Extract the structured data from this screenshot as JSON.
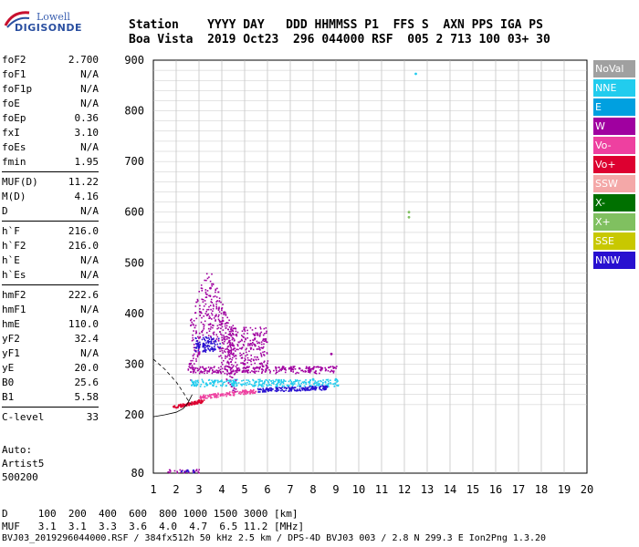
{
  "logo": {
    "top": "Lowell",
    "bottom": "DIGISONDE"
  },
  "header": {
    "line1": "Station    YYYY DAY   DDD HHMMSS P1  FFS S  AXN PPS IGA PS",
    "line2": "Boa Vista  2019 Oct23  296 044000 RSF  005 2 713 100 03+ 30"
  },
  "params": [
    {
      "label": "foF2",
      "value": "2.700"
    },
    {
      "label": "foF1",
      "value": "N/A"
    },
    {
      "label": "foF1p",
      "value": "N/A"
    },
    {
      "label": "foE",
      "value": "N/A"
    },
    {
      "label": "foEp",
      "value": "0.36"
    },
    {
      "label": "fxI",
      "value": "3.10"
    },
    {
      "label": "foEs",
      "value": "N/A"
    },
    {
      "label": "fmin",
      "value": "1.95"
    },
    {
      "label": "MUF(D)",
      "value": "11.22"
    },
    {
      "label": "M(D)",
      "value": "4.16"
    },
    {
      "label": "D",
      "value": "N/A"
    },
    {
      "label": "h`F",
      "value": "216.0"
    },
    {
      "label": "h`F2",
      "value": "216.0"
    },
    {
      "label": "h`E",
      "value": "N/A"
    },
    {
      "label": "h`Es",
      "value": "N/A"
    },
    {
      "label": "hmF2",
      "value": "222.6"
    },
    {
      "label": "hmF1",
      "value": "N/A"
    },
    {
      "label": "hmE",
      "value": "110.0"
    },
    {
      "label": "yF2",
      "value": "32.4"
    },
    {
      "label": "yF1",
      "value": "N/A"
    },
    {
      "label": "yE",
      "value": "20.0"
    },
    {
      "label": "B0",
      "value": "25.6"
    },
    {
      "label": "B1",
      "value": "5.58"
    },
    {
      "label": "C-level",
      "value": "33"
    }
  ],
  "auto": {
    "line1": "Auto:",
    "line2": "Artist5",
    "line3": "500200"
  },
  "legend": [
    {
      "label": "NoVal",
      "color": "#a0a0a0"
    },
    {
      "label": "NNE",
      "color": "#22ccee"
    },
    {
      "label": "E",
      "color": "#00a0e0"
    },
    {
      "label": "W",
      "color": "#a000a0"
    },
    {
      "label": "Vo-",
      "color": "#ee40a0"
    },
    {
      "label": "Vo+",
      "color": "#dd0030"
    },
    {
      "label": "SSW",
      "color": "#f4a8a8"
    },
    {
      "label": "X-",
      "color": "#007000"
    },
    {
      "label": "X+",
      "color": "#80c060"
    },
    {
      "label": "SSE",
      "color": "#c8c800"
    },
    {
      "label": "NNW",
      "color": "#2810d0"
    }
  ],
  "footer": {
    "line1": "D     100  200  400  600  800 1000 1500 3000 [km]",
    "line2": "MUF   3.1  3.1  3.3  3.6  4.0  4.7  6.5 11.2 [MHz]",
    "line3": "BVJ03_2019296044000.RSF / 384fx512h 50 kHz 2.5 km / DPS-4D BVJ03 003 / 2.8 N 299.3 E Ion2Png 1.3.20"
  },
  "chart_data": {
    "type": "scatter",
    "title": "",
    "xlabel": "",
    "ylabel": "",
    "xlim": [
      1,
      20
    ],
    "ylim": [
      80,
      900
    ],
    "x_ticks": [
      1,
      2,
      3,
      4,
      5,
      6,
      7,
      8,
      9,
      10,
      11,
      12,
      13,
      14,
      15,
      16,
      17,
      18,
      19,
      20
    ],
    "y_ticks": [
      80,
      200,
      300,
      400,
      500,
      600,
      700,
      800,
      900
    ],
    "grid": true,
    "series": [
      {
        "name": "NNW",
        "color": "#2810d0",
        "points": [
          [
            3.0,
            335
          ],
          [
            3.2,
            340
          ],
          [
            3.4,
            345
          ],
          [
            3.6,
            330
          ],
          [
            6.0,
            250
          ],
          [
            7.0,
            250
          ],
          [
            8.0,
            252
          ],
          [
            8.6,
            255
          ]
        ]
      },
      {
        "name": "NNE",
        "color": "#22ccee",
        "points": [
          [
            2.8,
            258
          ],
          [
            3.5,
            262
          ],
          [
            4.5,
            260
          ],
          [
            5.5,
            265
          ],
          [
            6.5,
            268
          ],
          [
            8.0,
            270
          ],
          [
            9.0,
            270
          ],
          [
            12.5,
            873
          ]
        ]
      },
      {
        "name": "W",
        "color": "#a000a0",
        "points": [
          [
            2.6,
            300
          ],
          [
            3.0,
            320
          ],
          [
            3.5,
            450
          ],
          [
            4.0,
            380
          ],
          [
            5.0,
            300
          ],
          [
            6.0,
            293
          ],
          [
            7.0,
            292
          ],
          [
            8.0,
            291
          ],
          [
            8.8,
            320
          ]
        ]
      },
      {
        "name": "Vo+",
        "color": "#dd0030",
        "points": [
          [
            1.9,
            216
          ],
          [
            2.2,
            218
          ],
          [
            2.6,
            222
          ],
          [
            3.0,
            228
          ]
        ]
      },
      {
        "name": "Vo-",
        "color": "#ee40a0",
        "points": [
          [
            3.2,
            235
          ],
          [
            4.0,
            240
          ],
          [
            5.0,
            245
          ]
        ]
      },
      {
        "name": "X+",
        "color": "#80c060",
        "points": [
          [
            12.2,
            590
          ],
          [
            12.2,
            600
          ]
        ]
      }
    ]
  }
}
